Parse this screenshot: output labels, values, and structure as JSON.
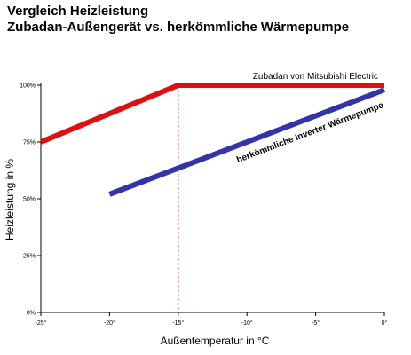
{
  "chart_data": {
    "type": "line",
    "title": "Vergleich Heizleistung",
    "subtitle": "Zubadan-Außengerät vs. herkömmliche Wärmepumpe",
    "xlabel": "Außentemperatur in °C",
    "ylabel": "Heizleistung in %",
    "xlim": [
      -25,
      0
    ],
    "ylim": [
      0,
      100
    ],
    "x_ticks": [
      -25,
      -20,
      -15,
      -10,
      -5,
      0
    ],
    "x_tick_labels": [
      "-25°",
      "-20°",
      "-15°",
      "-10°",
      "-5°",
      "0°"
    ],
    "y_ticks": [
      0,
      25,
      50,
      75,
      100
    ],
    "y_tick_labels": [
      "0%",
      "25%",
      "50%",
      "75%",
      "100%"
    ],
    "reference_line_x": -15,
    "series": [
      {
        "name": "Zubadan von Mitsubishi Electric",
        "color": "#dd1111",
        "x": [
          -25,
          -15,
          0
        ],
        "y": [
          75,
          100,
          100
        ]
      },
      {
        "name": "herkömmliche Inverter Wärmepumpe",
        "color": "#3333aa",
        "x": [
          -20,
          0
        ],
        "y": [
          52,
          98
        ]
      }
    ]
  }
}
